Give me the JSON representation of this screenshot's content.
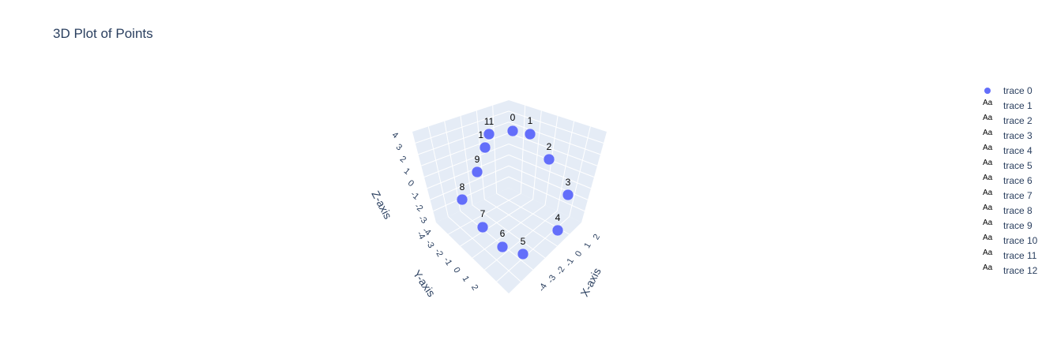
{
  "chart_data": {
    "type": "scatter3d",
    "title": "3D Plot of Points",
    "axes": {
      "x": {
        "title": "X-axis",
        "ticks": [
          "-4",
          "-3",
          "-2",
          "-1",
          "0",
          "1",
          "2"
        ]
      },
      "y": {
        "title": "Y-axis",
        "ticks": [
          "-4",
          "-3",
          "-2",
          "-1",
          "0",
          "1",
          "2"
        ]
      },
      "z": {
        "title": "Z-axis",
        "ticks": [
          "-4",
          "-3",
          "-2",
          "-1",
          "0",
          "1",
          "2",
          "3",
          "4"
        ]
      }
    },
    "marker_color": "#636efa",
    "points": [
      {
        "label": "0"
      },
      {
        "label": "1"
      },
      {
        "label": "2"
      },
      {
        "label": "3"
      },
      {
        "label": "4"
      },
      {
        "label": "5"
      },
      {
        "label": "6"
      },
      {
        "label": "7"
      },
      {
        "label": "8"
      },
      {
        "label": "9"
      },
      {
        "label": "10"
      },
      {
        "label": "11"
      }
    ],
    "legend": [
      "trace 0",
      "trace 1",
      "trace 2",
      "trace 3",
      "trace 4",
      "trace 5",
      "trace 6",
      "trace 7",
      "trace 8",
      "trace 9",
      "trace 10",
      "trace 11",
      "trace 12"
    ],
    "grid": true,
    "legend_position": "right"
  }
}
